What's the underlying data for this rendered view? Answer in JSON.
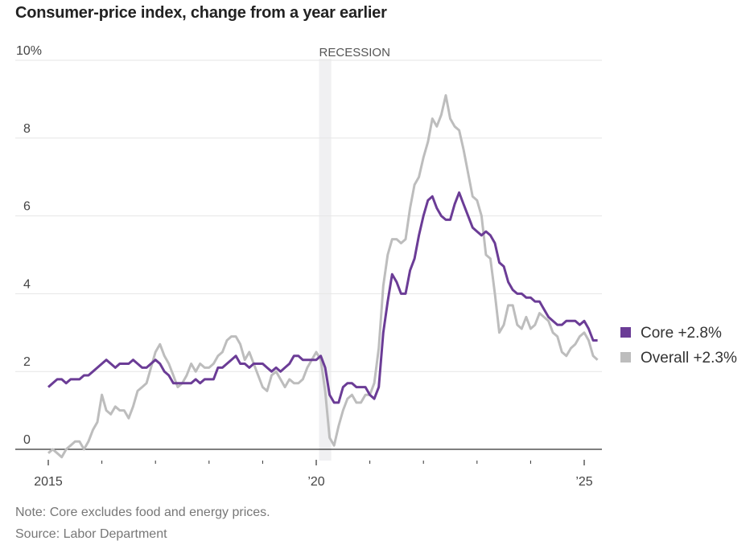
{
  "chart_data": {
    "type": "line",
    "title": "Consumer-price index, change from a year earlier",
    "x_start": "2015-01",
    "x_end": "2025-04",
    "x_frequency": "monthly",
    "xlim": [
      "2014-11",
      "2025-05"
    ],
    "ylim": [
      0,
      10
    ],
    "y_unit": "%",
    "y_ticks": [
      {
        "value": 10,
        "label": "10%"
      },
      {
        "value": 8,
        "label": "8"
      },
      {
        "value": 6,
        "label": "6"
      },
      {
        "value": 4,
        "label": "4"
      },
      {
        "value": 2,
        "label": "2"
      },
      {
        "value": 0,
        "label": "0"
      }
    ],
    "x_tick_labels": [
      {
        "year": 2015,
        "label": "2015"
      },
      {
        "year": 2020,
        "label": "’20"
      },
      {
        "year": 2025,
        "label": "’25"
      }
    ],
    "x_minor_ticks_years": [
      2016,
      2017,
      2018,
      2019,
      2021,
      2022,
      2023,
      2024
    ],
    "grid": true,
    "recession": {
      "label": "RECESSION",
      "start": "2020-02",
      "end": "2020-04"
    },
    "legend_placement": "right",
    "series": [
      {
        "name": "Core",
        "legend_label": "Core +2.8%",
        "color": "#6b3c96",
        "values": [
          1.6,
          1.7,
          1.8,
          1.8,
          1.7,
          1.8,
          1.8,
          1.8,
          1.9,
          1.9,
          2.0,
          2.1,
          2.2,
          2.3,
          2.2,
          2.1,
          2.2,
          2.2,
          2.2,
          2.3,
          2.2,
          2.1,
          2.1,
          2.2,
          2.3,
          2.2,
          2.0,
          1.9,
          1.7,
          1.7,
          1.7,
          1.7,
          1.7,
          1.8,
          1.7,
          1.8,
          1.8,
          1.8,
          2.1,
          2.1,
          2.2,
          2.3,
          2.4,
          2.2,
          2.2,
          2.1,
          2.2,
          2.2,
          2.2,
          2.1,
          2.0,
          2.1,
          2.0,
          2.1,
          2.2,
          2.4,
          2.4,
          2.3,
          2.3,
          2.3,
          2.3,
          2.4,
          2.1,
          1.4,
          1.2,
          1.2,
          1.6,
          1.7,
          1.7,
          1.6,
          1.6,
          1.6,
          1.4,
          1.3,
          1.6,
          3.0,
          3.8,
          4.5,
          4.3,
          4.0,
          4.0,
          4.6,
          4.9,
          5.5,
          6.0,
          6.4,
          6.5,
          6.2,
          6.0,
          5.9,
          5.9,
          6.3,
          6.6,
          6.3,
          6.0,
          5.7,
          5.6,
          5.5,
          5.6,
          5.5,
          5.3,
          4.8,
          4.7,
          4.3,
          4.1,
          4.0,
          4.0,
          3.9,
          3.9,
          3.8,
          3.8,
          3.6,
          3.4,
          3.3,
          3.2,
          3.2,
          3.3,
          3.3,
          3.3,
          3.2,
          3.3,
          3.1,
          2.8,
          2.8
        ]
      },
      {
        "name": "Overall",
        "legend_label": "Overall +2.3%",
        "color": "#bdbdbd",
        "values": [
          -0.1,
          0.0,
          -0.1,
          -0.2,
          0.0,
          0.1,
          0.2,
          0.2,
          0.0,
          0.2,
          0.5,
          0.7,
          1.4,
          1.0,
          0.9,
          1.1,
          1.0,
          1.0,
          0.8,
          1.1,
          1.5,
          1.6,
          1.7,
          2.1,
          2.5,
          2.7,
          2.4,
          2.2,
          1.9,
          1.6,
          1.7,
          1.9,
          2.2,
          2.0,
          2.2,
          2.1,
          2.1,
          2.2,
          2.4,
          2.5,
          2.8,
          2.9,
          2.9,
          2.7,
          2.3,
          2.5,
          2.2,
          1.9,
          1.6,
          1.5,
          1.9,
          2.0,
          1.8,
          1.6,
          1.8,
          1.7,
          1.7,
          1.8,
          2.1,
          2.3,
          2.5,
          2.3,
          1.5,
          0.3,
          0.1,
          0.6,
          1.0,
          1.3,
          1.4,
          1.2,
          1.2,
          1.4,
          1.4,
          1.7,
          2.6,
          4.2,
          5.0,
          5.4,
          5.4,
          5.3,
          5.4,
          6.2,
          6.8,
          7.0,
          7.5,
          7.9,
          8.5,
          8.3,
          8.6,
          9.1,
          8.5,
          8.3,
          8.2,
          7.7,
          7.1,
          6.5,
          6.4,
          6.0,
          5.0,
          4.9,
          4.0,
          3.0,
          3.2,
          3.7,
          3.7,
          3.2,
          3.1,
          3.4,
          3.1,
          3.2,
          3.5,
          3.4,
          3.3,
          3.0,
          2.9,
          2.5,
          2.4,
          2.6,
          2.7,
          2.9,
          3.0,
          2.8,
          2.4,
          2.3
        ]
      }
    ]
  },
  "notes": {
    "note": "Note: Core excludes food and energy prices.",
    "source": "Source: Labor Department"
  }
}
